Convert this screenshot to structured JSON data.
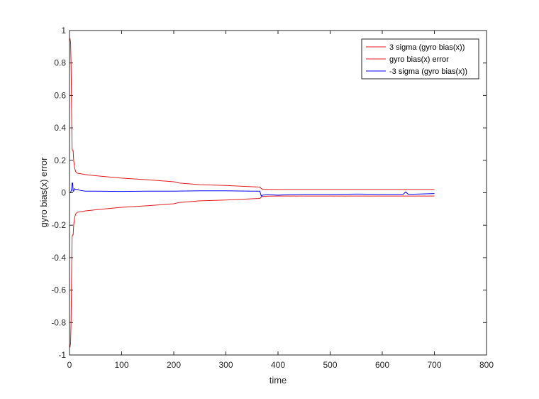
{
  "chart_data": {
    "type": "line",
    "title": "",
    "xlabel": "time",
    "ylabel": "gyro bias(x) error",
    "xlim": [
      0,
      800
    ],
    "ylim": [
      -1,
      1
    ],
    "xticks": [
      0,
      100,
      200,
      300,
      400,
      500,
      600,
      700,
      800
    ],
    "xtick_labels": [
      "0",
      "100",
      "200",
      "300",
      "400",
      "500",
      "600",
      "700",
      "800"
    ],
    "yticks": [
      -1,
      -0.8,
      -0.6,
      -0.4,
      -0.2,
      0,
      0.2,
      0.4,
      0.6,
      0.8,
      1
    ],
    "ytick_labels": [
      "-1",
      "-0.8",
      "-0.6",
      "-0.4",
      "-0.2",
      "0",
      "0.2",
      "0.4",
      "0.6",
      "0.8",
      "1"
    ],
    "grid": false,
    "legend_position": "top-right",
    "series": [
      {
        "name": "3 sigma (gyro bias(x))",
        "color": "#e41a1c",
        "x": [
          0,
          1,
          2,
          3,
          4,
          5,
          6,
          7,
          8,
          10,
          12,
          15,
          20,
          30,
          50,
          100,
          150,
          200,
          210,
          250,
          300,
          350,
          365,
          368,
          370,
          400,
          500,
          600,
          700
        ],
        "y": [
          0.95,
          0.95,
          0.93,
          0.8,
          0.5,
          0.27,
          0.26,
          0.26,
          0.2,
          0.15,
          0.13,
          0.12,
          0.118,
          0.112,
          0.105,
          0.09,
          0.08,
          0.068,
          0.06,
          0.05,
          0.045,
          0.037,
          0.035,
          0.026,
          0.022,
          0.02,
          0.02,
          0.02,
          0.02
        ]
      },
      {
        "name": "gyro bias(x) error",
        "color": "#e41a1c",
        "x": [
          0,
          1,
          2,
          3,
          4,
          5,
          6,
          7,
          8,
          10,
          12,
          15,
          20,
          30,
          50,
          100,
          150,
          200,
          210,
          250,
          300,
          350,
          365,
          368,
          370,
          400,
          500,
          600,
          700
        ],
        "y": [
          -0.95,
          -0.95,
          -0.93,
          -0.8,
          -0.5,
          -0.27,
          -0.26,
          -0.26,
          -0.2,
          -0.15,
          -0.13,
          -0.12,
          -0.118,
          -0.112,
          -0.105,
          -0.09,
          -0.08,
          -0.068,
          -0.06,
          -0.05,
          -0.045,
          -0.037,
          -0.035,
          -0.026,
          -0.022,
          -0.02,
          -0.02,
          -0.02,
          -0.02
        ]
      },
      {
        "name": "-3 sigma (gyro bias(x))",
        "color": "#0000ff",
        "x": [
          0,
          2,
          4,
          5,
          6,
          7,
          8,
          9,
          10,
          12,
          15,
          20,
          30,
          50,
          100,
          150,
          200,
          250,
          300,
          350,
          365,
          368,
          370,
          380,
          400,
          420,
          450,
          500,
          550,
          600,
          640,
          645,
          650,
          700
        ],
        "y": [
          0.0,
          0.0,
          0.02,
          0.06,
          0.06,
          0.01,
          0.01,
          0.02,
          0.025,
          0.02,
          0.02,
          0.015,
          0.01,
          0.01,
          0.008,
          0.01,
          0.01,
          0.012,
          0.012,
          0.01,
          0.01,
          -0.02,
          -0.015,
          -0.012,
          -0.015,
          -0.012,
          -0.01,
          -0.01,
          -0.008,
          -0.01,
          -0.01,
          0.005,
          -0.01,
          -0.005
        ]
      }
    ]
  }
}
